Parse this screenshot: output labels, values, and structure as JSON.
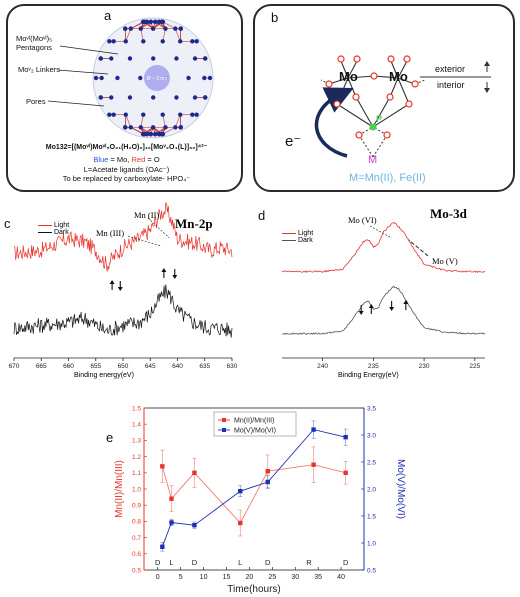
{
  "panel_a": {
    "letter": "a",
    "labels": {
      "pentagons_line1": "Moᵛᴵ(Moᵛᴵ)₅",
      "pentagons_line2": "Pentagons",
      "linkers": "Moᵛ₂ Linkers",
      "pores": "Pores",
      "center": "Ø ~ 3 nm"
    },
    "formula": "Mo132=[(Moᵛᴵ)Moᵛᴵ₅O₂₁(H₂O)₆]₁₂[Moᵛ₂O₄(L)]₃₀]⁴²⁻",
    "color_legend": {
      "blue": "Blue",
      "eq_mo": "= Mo,",
      "red": "Red",
      "eq_o": "= O"
    },
    "ligand_note": "L=Acetate ligands (OAc⁻)",
    "replace_note": "To be replaced by carboxylate- HPO₄⁻"
  },
  "panel_b": {
    "letter": "b",
    "mo_left": "Mo",
    "mo_right": "Mo",
    "exterior": "exterior",
    "interior": "interior",
    "electron": "e⁻",
    "p_label": "P",
    "m_label": "M",
    "o_label": "O",
    "caption": "M=Mn(II), Fe(II)"
  },
  "panel_c": {
    "letter": "c",
    "title": "Mn-2p",
    "legend": [
      "Light",
      "Dark"
    ],
    "annot_mn2": "Mn (II)",
    "annot_mn3": "Mn (III)",
    "xlabel": "Binding energy(eV)"
  },
  "panel_d": {
    "letter": "d",
    "title": "Mo-3d",
    "legend": [
      "Light",
      "Dark"
    ],
    "annot_mo6": "Mo (VI)",
    "annot_mo5": "Mo (V)",
    "xlabel": "Binding Energy(eV)"
  },
  "panel_e": {
    "letter": "e"
  },
  "colors": {
    "red": "#e8332a",
    "blue": "#1c2fb5",
    "black": "#111111",
    "green": "#4bd04b",
    "magenta": "#d23bd2",
    "cyan": "#6fb4e4",
    "navy": "#1b2a5c"
  },
  "chart_data": [
    {
      "type": "line",
      "panel": "c",
      "title": "Mn-2p",
      "xlabel": "Binding energy(eV)",
      "xlim": [
        670,
        630
      ],
      "x_ticks": [
        670,
        665,
        660,
        655,
        650,
        645,
        640,
        635,
        630
      ],
      "series": [
        {
          "name": "Light",
          "color": "#e8332a",
          "x": [
            670,
            665,
            660,
            657,
            655,
            653,
            650,
            647,
            645,
            643,
            642,
            641,
            640,
            638,
            636,
            634,
            632,
            630
          ],
          "y": [
            0.7,
            0.72,
            0.8,
            0.78,
            0.72,
            0.62,
            0.74,
            0.8,
            0.86,
            0.98,
            1.0,
            0.92,
            0.8,
            0.78,
            0.76,
            0.72,
            0.74,
            0.72
          ]
        },
        {
          "name": "Dark",
          "color": "#111111",
          "x": [
            670,
            665,
            660,
            657,
            655,
            653,
            650,
            647,
            645,
            643,
            642,
            641,
            640,
            638,
            636,
            634,
            632,
            630
          ],
          "y": [
            0.18,
            0.2,
            0.22,
            0.25,
            0.2,
            0.16,
            0.2,
            0.22,
            0.28,
            0.4,
            0.44,
            0.38,
            0.3,
            0.24,
            0.2,
            0.18,
            0.18,
            0.16
          ]
        }
      ]
    },
    {
      "type": "line",
      "panel": "d",
      "title": "Mo-3d",
      "xlabel": "Binding Energy(eV)",
      "xlim": [
        244,
        224
      ],
      "x_ticks": [
        240,
        235,
        230,
        225
      ],
      "series": [
        {
          "name": "Light",
          "color": "#e8332a",
          "x": [
            244,
            240,
            238,
            237,
            236,
            235.5,
            235,
            234.5,
            234,
            233,
            232.5,
            232,
            231,
            230,
            228,
            226,
            224
          ],
          "y": [
            0.6,
            0.6,
            0.62,
            0.72,
            0.84,
            0.86,
            0.8,
            0.82,
            0.92,
            1.0,
            0.96,
            0.92,
            0.78,
            0.66,
            0.61,
            0.6,
            0.6
          ]
        },
        {
          "name": "Dark",
          "color": "#555555",
          "x": [
            244,
            240,
            238,
            237,
            236,
            235.5,
            235,
            234.5,
            234,
            233,
            232.5,
            232,
            231,
            230,
            228,
            226,
            224
          ],
          "y": [
            0.1,
            0.1,
            0.12,
            0.22,
            0.34,
            0.36,
            0.3,
            0.31,
            0.4,
            0.48,
            0.46,
            0.4,
            0.26,
            0.15,
            0.11,
            0.1,
            0.1
          ]
        }
      ]
    },
    {
      "type": "line",
      "panel": "e",
      "xlabel": "Time(hours)",
      "ylabel_left": "Mn(II)/Mn(III)",
      "ylabel_right": "Mo(V)/Mo(VI)",
      "xlim": [
        -3,
        45
      ],
      "x_ticks": [
        0,
        5,
        10,
        15,
        20,
        25,
        30,
        35,
        40
      ],
      "ylim_left": [
        0.5,
        1.5
      ],
      "y_ticks_left": [
        0.5,
        0.6,
        0.7,
        0.8,
        0.9,
        1.0,
        1.1,
        1.2,
        1.3,
        1.4,
        1.5
      ],
      "ylim_right": [
        0.5,
        3.5
      ],
      "y_ticks_right": [
        0.5,
        1.0,
        1.5,
        2.0,
        2.5,
        3.0,
        3.5
      ],
      "condition_labels": [
        {
          "x": 0,
          "label": "D"
        },
        {
          "x": 3,
          "label": "L"
        },
        {
          "x": 8,
          "label": "D"
        },
        {
          "x": 18,
          "label": "L"
        },
        {
          "x": 24,
          "label": "D"
        },
        {
          "x": 33,
          "label": "R"
        },
        {
          "x": 41,
          "label": "D"
        }
      ],
      "series": [
        {
          "name": "Mn(II)/Mn(III)",
          "axis": "left",
          "color": "#e8332a",
          "marker": "square",
          "x": [
            1,
            3,
            8,
            18,
            24,
            34,
            41
          ],
          "y": [
            1.14,
            0.94,
            1.1,
            0.79,
            1.11,
            1.15,
            1.1
          ],
          "err": [
            0.1,
            0.08,
            0.09,
            0.08,
            0.1,
            0.11,
            0.07
          ]
        },
        {
          "name": "Mo(V)/Mo(VI)",
          "axis": "right",
          "color": "#1c2fb5",
          "marker": "square",
          "x": [
            1,
            3,
            8,
            18,
            24,
            34,
            41
          ],
          "y": [
            0.93,
            1.38,
            1.33,
            1.96,
            2.13,
            3.1,
            2.96
          ],
          "err": [
            0.08,
            0.06,
            0.06,
            0.1,
            0.12,
            0.16,
            0.15
          ]
        }
      ]
    }
  ]
}
